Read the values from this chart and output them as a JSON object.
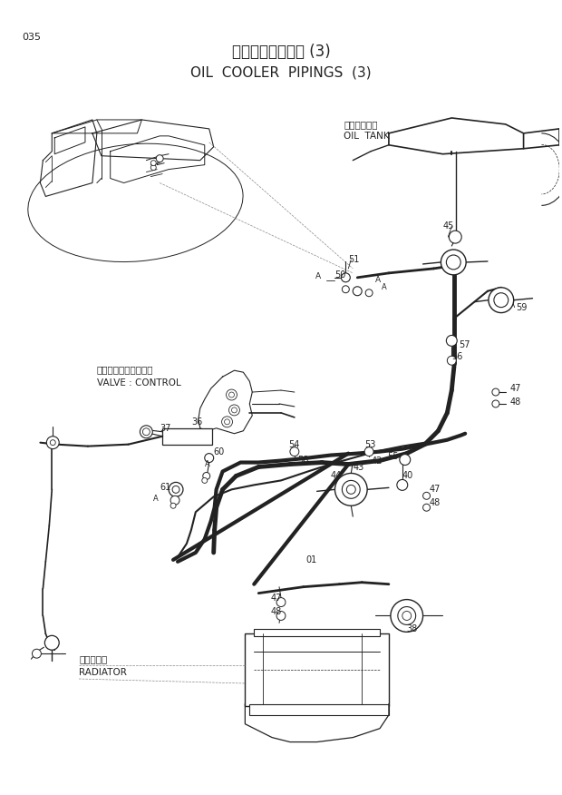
{
  "title_jp": "オイルクーラ配管 (3)",
  "title_en": "OIL  COOLER  PIPINGS  (3)",
  "page_number": "035",
  "bg_color": "#ffffff",
  "line_color": "#222222",
  "text_color": "#222222",
  "fig_width": 6.2,
  "fig_height": 8.76,
  "dpi": 100,
  "oil_tank_jp": "オイルタンク",
  "oil_tank_en": "OIL  TANK",
  "valve_jp": "バルブ：コントロール",
  "valve_en": "VALVE : CONTROL",
  "radiator_jp": "ラジエータ",
  "radiator_en": "RADIATOR"
}
